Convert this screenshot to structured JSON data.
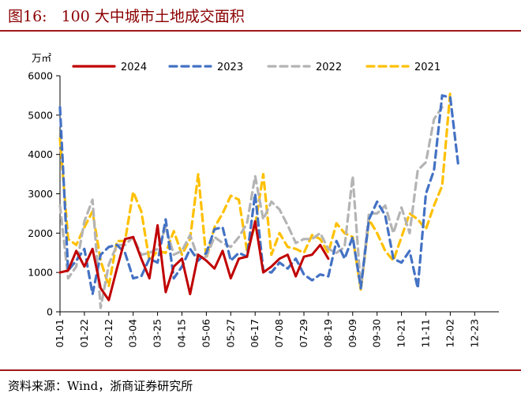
{
  "figure": {
    "number": "图16:",
    "title": "100 大中城市土地成交面积"
  },
  "source": "资料来源：Wind，浙商证券研究所",
  "chart_data": {
    "type": "line",
    "y_unit": "万㎡",
    "ylim": [
      0,
      6000
    ],
    "y_ticks": [
      0,
      1000,
      2000,
      3000,
      4000,
      5000,
      6000
    ],
    "x_tick_labels": [
      "01-01",
      "01-22",
      "02-12",
      "03-04",
      "03-25",
      "04-15",
      "05-06",
      "05-27",
      "06-17",
      "07-08",
      "07-29",
      "08-19",
      "09-09",
      "09-30",
      "10-21",
      "11-11",
      "12-02",
      "12-23"
    ],
    "weeks_per_tick": 3,
    "legend_position": "top",
    "grid": false,
    "series": [
      {
        "name": "2024",
        "color": "#c00000",
        "dash": "solid",
        "values": [
          1000,
          1050,
          1550,
          1150,
          1600,
          600,
          300,
          1100,
          1850,
          1900,
          1350,
          850,
          2200,
          500,
          1150,
          1350,
          450,
          1450,
          1300,
          1100,
          1550,
          850,
          1350,
          1400,
          2300,
          1000,
          1150,
          1350,
          1450,
          900,
          1400,
          1450,
          1700,
          1350
        ]
      },
      {
        "name": "2023",
        "color": "#4472c4",
        "dash": "dashed",
        "values": [
          5200,
          1050,
          1300,
          1600,
          450,
          1450,
          1650,
          1700,
          1500,
          850,
          900,
          1350,
          1250,
          2350,
          850,
          1150,
          1600,
          1300,
          1500,
          2100,
          2150,
          1300,
          1500,
          1400,
          3000,
          1050,
          1000,
          1250,
          1100,
          1350,
          950,
          800,
          950,
          900,
          1800,
          1350,
          1900,
          600,
          2350,
          2800,
          2450,
          1350,
          1250,
          1550,
          600,
          3000,
          3600,
          5500,
          5450,
          3700
        ]
      },
      {
        "name": "2022",
        "color": "#b4b4b4",
        "dash": "dashed",
        "values": [
          2700,
          850,
          1150,
          2300,
          2850,
          100,
          1200,
          1700,
          1700,
          1900,
          1450,
          1500,
          1600,
          2150,
          1450,
          1550,
          1950,
          1350,
          1400,
          1900,
          1750,
          1650,
          1900,
          2250,
          3450,
          2350,
          2800,
          2600,
          2200,
          1750,
          1850,
          1850,
          2000,
          1600,
          1500,
          1650,
          3450,
          600,
          2500,
          2500,
          2700,
          2000,
          2650,
          2000,
          3600,
          3800,
          4900,
          5200
        ]
      },
      {
        "name": "2021",
        "color": "#ffc000",
        "dash": "dashed",
        "values": [
          4400,
          1850,
          1700,
          2150,
          2550,
          1300,
          650,
          1800,
          1800,
          3050,
          2550,
          1300,
          1550,
          1500,
          2050,
          1450,
          1850,
          3500,
          1350,
          2150,
          2500,
          2950,
          2850,
          1550,
          2200,
          3500,
          1450,
          2000,
          1650,
          1600,
          1500,
          1950,
          1850,
          1500,
          2250,
          2000,
          1900,
          550,
          2350,
          2000,
          1550,
          1300,
          1900,
          2500,
          2350,
          2100,
          2700,
          3200,
          5600
        ]
      }
    ]
  }
}
